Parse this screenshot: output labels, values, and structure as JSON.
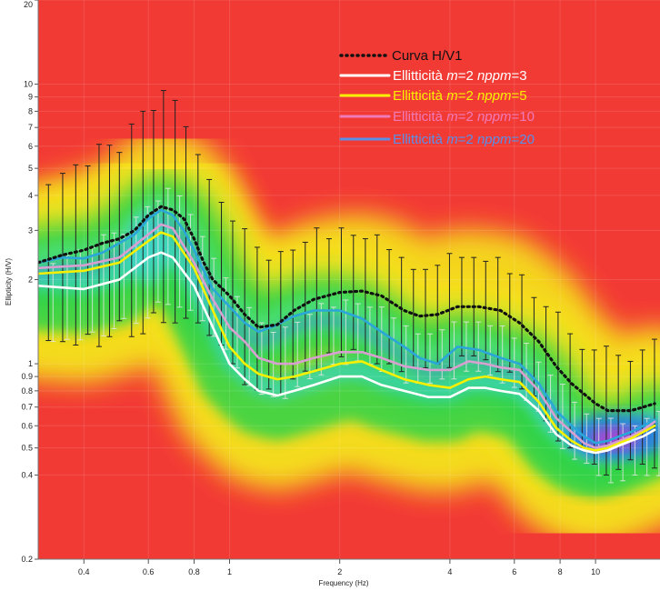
{
  "chart_data": {
    "type": "line",
    "xlabel": "Frequency (Hz)",
    "ylabel": "Ellipticity (H/V)",
    "x_scale": "log",
    "y_scale": "log",
    "xlim": [
      0.3,
      15
    ],
    "ylim": [
      0.2,
      20
    ],
    "x_ticks": [
      {
        "value": 0.4,
        "label": "0.4"
      },
      {
        "value": 0.6,
        "label": "0.6"
      },
      {
        "value": 0.8,
        "label": "0.8"
      },
      {
        "value": 1,
        "label": "1"
      },
      {
        "value": 2,
        "label": "2"
      },
      {
        "value": 4,
        "label": "4"
      },
      {
        "value": 6,
        "label": "6"
      },
      {
        "value": 8,
        "label": "8"
      },
      {
        "value": 10,
        "label": "10"
      }
    ],
    "y_ticks": [
      {
        "value": 0.2,
        "label": "0.2"
      },
      {
        "value": 0.4,
        "label": "0.4"
      },
      {
        "value": 0.5,
        "label": "0.5"
      },
      {
        "value": 0.6,
        "label": "0.6"
      },
      {
        "value": 0.7,
        "label": "0.7"
      },
      {
        "value": 0.8,
        "label": "0.8"
      },
      {
        "value": 0.9,
        "label": "0.9"
      },
      {
        "value": 1,
        "label": "1"
      },
      {
        "value": 2,
        "label": "2"
      },
      {
        "value": 3,
        "label": "3"
      },
      {
        "value": 4,
        "label": "4"
      },
      {
        "value": 5,
        "label": "5"
      },
      {
        "value": 6,
        "label": "6"
      },
      {
        "value": 7,
        "label": "7"
      },
      {
        "value": 8,
        "label": "8"
      },
      {
        "value": 9,
        "label": "9"
      },
      {
        "value": 10,
        "label": "10"
      },
      {
        "value": 20,
        "label": "20"
      }
    ],
    "legend_position": "top-right",
    "background": "ellipticity probability density heatmap (red high, blue/magenta peak density)",
    "colors": {
      "heatmap_low": "#f23a35",
      "heatmap_mid": "#f5e41e",
      "heatmap_green": "#2fd34a",
      "heatmap_blue": "#2a7fe0",
      "heatmap_peak": "#c03ad0",
      "errorbar_dark": "#222222",
      "errorbar_light": "#e8e8e8"
    },
    "legend": [
      {
        "key": "hv",
        "prefix": "Curva H/V1",
        "m": "",
        "nppm": "",
        "color": "#111111",
        "dash": "dotted"
      },
      {
        "key": "n3",
        "prefix": "Ellitticità ",
        "m": "m",
        "eq1": "=2 ",
        "nppm": "nppm",
        "eq2": "=3",
        "color": "#ffffff",
        "dash": "solid"
      },
      {
        "key": "n5",
        "prefix": "Ellitticità ",
        "m": "m",
        "eq1": "=2 ",
        "nppm": "nppm",
        "eq2": "=5",
        "color": "#f7f000",
        "dash": "solid"
      },
      {
        "key": "n10",
        "prefix": "Ellitticità ",
        "m": "m",
        "eq1": "=2 ",
        "nppm": "nppm",
        "eq2": "=10",
        "color": "#f07ab8",
        "dash": "solid"
      },
      {
        "key": "n20",
        "prefix": "Ellitticità ",
        "m": "m",
        "eq1": "=2 ",
        "nppm": "nppm",
        "eq2": "=20",
        "color": "#5a8fe8",
        "dash": "solid"
      }
    ],
    "series": [
      {
        "key": "hv",
        "color": "#111111",
        "dash": "2,4",
        "x": [
          0.3,
          0.35,
          0.4,
          0.45,
          0.5,
          0.55,
          0.6,
          0.65,
          0.7,
          0.75,
          0.8,
          0.85,
          0.9,
          1.0,
          1.1,
          1.2,
          1.35,
          1.5,
          1.7,
          2.0,
          2.3,
          2.6,
          3.0,
          3.3,
          3.7,
          4.2,
          4.8,
          5.5,
          6.2,
          7.0,
          7.8,
          8.6,
          9.3,
          10.0,
          10.8,
          11.6,
          12.5,
          13.5,
          14.5
        ],
        "y": [
          2.3,
          2.45,
          2.55,
          2.7,
          2.8,
          3.0,
          3.4,
          3.65,
          3.55,
          3.3,
          2.8,
          2.3,
          2.0,
          1.75,
          1.5,
          1.35,
          1.38,
          1.55,
          1.7,
          1.8,
          1.82,
          1.75,
          1.55,
          1.48,
          1.5,
          1.6,
          1.6,
          1.55,
          1.4,
          1.2,
          0.98,
          0.85,
          0.78,
          0.72,
          0.68,
          0.68,
          0.68,
          0.7,
          0.72
        ]
      },
      {
        "key": "n20",
        "color": "#2aa7d8",
        "dash": "",
        "x": [
          0.3,
          0.35,
          0.4,
          0.45,
          0.5,
          0.55,
          0.6,
          0.65,
          0.7,
          0.75,
          0.8,
          0.85,
          0.9,
          1.0,
          1.1,
          1.2,
          1.35,
          1.5,
          1.7,
          2.0,
          2.3,
          2.6,
          3.0,
          3.3,
          3.7,
          4.2,
          4.8,
          5.5,
          6.2,
          7.0,
          7.8,
          8.6,
          9.3,
          10.0,
          10.8,
          11.6,
          12.5,
          13.5,
          14.5
        ],
        "y": [
          2.3,
          2.4,
          2.38,
          2.5,
          2.7,
          2.9,
          3.3,
          3.55,
          3.4,
          3.0,
          2.55,
          2.15,
          1.85,
          1.6,
          1.4,
          1.3,
          1.38,
          1.48,
          1.55,
          1.55,
          1.45,
          1.3,
          1.15,
          1.05,
          1.0,
          1.15,
          1.12,
          1.05,
          1.0,
          0.85,
          0.68,
          0.6,
          0.55,
          0.52,
          0.53,
          0.55,
          0.57,
          0.6,
          0.63
        ]
      },
      {
        "key": "n10",
        "color": "#d8a0d0",
        "dash": "",
        "x": [
          0.3,
          0.4,
          0.5,
          0.6,
          0.65,
          0.7,
          0.8,
          0.9,
          1.0,
          1.1,
          1.2,
          1.35,
          1.5,
          1.7,
          2.0,
          2.3,
          2.6,
          3.0,
          3.5,
          4.0,
          4.5,
          5.0,
          5.5,
          6.2,
          7.0,
          7.8,
          8.6,
          9.3,
          10.0,
          10.8,
          11.6,
          12.5,
          13.5,
          14.5
        ],
        "y": [
          2.2,
          2.25,
          2.4,
          2.9,
          3.15,
          3.05,
          2.3,
          1.7,
          1.35,
          1.2,
          1.05,
          1.0,
          1.0,
          1.05,
          1.1,
          1.1,
          1.05,
          0.98,
          0.95,
          0.95,
          1.02,
          1.0,
          0.97,
          0.95,
          0.8,
          0.64,
          0.57,
          0.52,
          0.5,
          0.51,
          0.53,
          0.55,
          0.58,
          0.62
        ]
      },
      {
        "key": "n5",
        "color": "#f7f000",
        "dash": "",
        "x": [
          0.3,
          0.4,
          0.5,
          0.6,
          0.65,
          0.7,
          0.8,
          0.9,
          1.0,
          1.1,
          1.2,
          1.35,
          1.5,
          1.7,
          2.0,
          2.3,
          2.6,
          3.0,
          3.5,
          4.0,
          4.5,
          5.0,
          5.5,
          6.2,
          7.0,
          7.8,
          8.6,
          9.3,
          10.0,
          10.8,
          11.6,
          12.5,
          13.5,
          14.5
        ],
        "y": [
          2.1,
          2.15,
          2.3,
          2.75,
          2.95,
          2.85,
          2.2,
          1.55,
          1.15,
          1.0,
          0.92,
          0.88,
          0.9,
          0.94,
          1.0,
          1.02,
          0.95,
          0.88,
          0.84,
          0.82,
          0.88,
          0.9,
          0.88,
          0.86,
          0.73,
          0.59,
          0.53,
          0.5,
          0.49,
          0.5,
          0.52,
          0.54,
          0.57,
          0.6
        ]
      },
      {
        "key": "n3",
        "color": "#ffffff",
        "dash": "",
        "x": [
          0.3,
          0.4,
          0.5,
          0.6,
          0.65,
          0.7,
          0.8,
          0.9,
          1.0,
          1.1,
          1.2,
          1.35,
          1.5,
          1.7,
          2.0,
          2.3,
          2.6,
          3.0,
          3.5,
          4.0,
          4.5,
          5.0,
          5.5,
          6.2,
          7.0,
          7.8,
          8.6,
          9.3,
          10.0,
          10.8,
          11.6,
          12.5,
          13.5,
          14.5
        ],
        "y": [
          1.9,
          1.85,
          2.0,
          2.4,
          2.5,
          2.4,
          1.9,
          1.35,
          1.0,
          0.88,
          0.8,
          0.77,
          0.8,
          0.84,
          0.9,
          0.9,
          0.84,
          0.8,
          0.76,
          0.76,
          0.82,
          0.82,
          0.8,
          0.78,
          0.68,
          0.56,
          0.51,
          0.49,
          0.48,
          0.49,
          0.51,
          0.53,
          0.55,
          0.58
        ]
      }
    ],
    "error_bars": {
      "x": [
        0.32,
        0.35,
        0.38,
        0.41,
        0.44,
        0.47,
        0.5,
        0.54,
        0.58,
        0.62,
        0.66,
        0.71,
        0.76,
        0.82,
        0.88,
        0.95,
        1.02,
        1.1,
        1.19,
        1.28,
        1.38,
        1.49,
        1.61,
        1.73,
        1.87,
        2.02,
        2.18,
        2.35,
        2.53,
        2.73,
        2.95,
        3.18,
        3.43,
        3.7,
        3.99,
        4.31,
        4.65,
        5.01,
        5.41,
        5.83,
        6.29,
        6.79,
        7.32,
        7.9,
        8.52,
        9.19,
        9.92,
        10.7,
        11.54,
        12.45,
        13.43,
        14.49
      ],
      "center": [
        2.3,
        2.4,
        2.45,
        2.55,
        2.65,
        2.75,
        2.85,
        3.0,
        3.2,
        3.5,
        3.65,
        3.5,
        3.2,
        2.8,
        2.4,
        2.1,
        1.8,
        1.6,
        1.45,
        1.38,
        1.4,
        1.5,
        1.6,
        1.7,
        1.75,
        1.8,
        1.8,
        1.75,
        1.7,
        1.6,
        1.5,
        1.45,
        1.45,
        1.5,
        1.55,
        1.6,
        1.6,
        1.55,
        1.5,
        1.4,
        1.3,
        1.15,
        1.0,
        0.9,
        0.8,
        0.75,
        0.7,
        0.68,
        0.67,
        0.68,
        0.7,
        0.72
      ],
      "factor": [
        1.9,
        2.0,
        2.1,
        2.0,
        2.3,
        2.2,
        2.0,
        2.4,
        2.5,
        2.3,
        2.6,
        2.5,
        2.2,
        2.0,
        1.9,
        1.8,
        1.8,
        1.9,
        1.8,
        1.7,
        1.8,
        1.7,
        1.7,
        1.8,
        1.6,
        1.7,
        1.6,
        1.6,
        1.7,
        1.6,
        1.6,
        1.5,
        1.5,
        1.5,
        1.6,
        1.5,
        1.5,
        1.5,
        1.6,
        1.5,
        1.6,
        1.5,
        1.6,
        1.7,
        1.6,
        1.5,
        1.6,
        1.7,
        1.6,
        1.5,
        1.6,
        1.7
      ]
    }
  }
}
